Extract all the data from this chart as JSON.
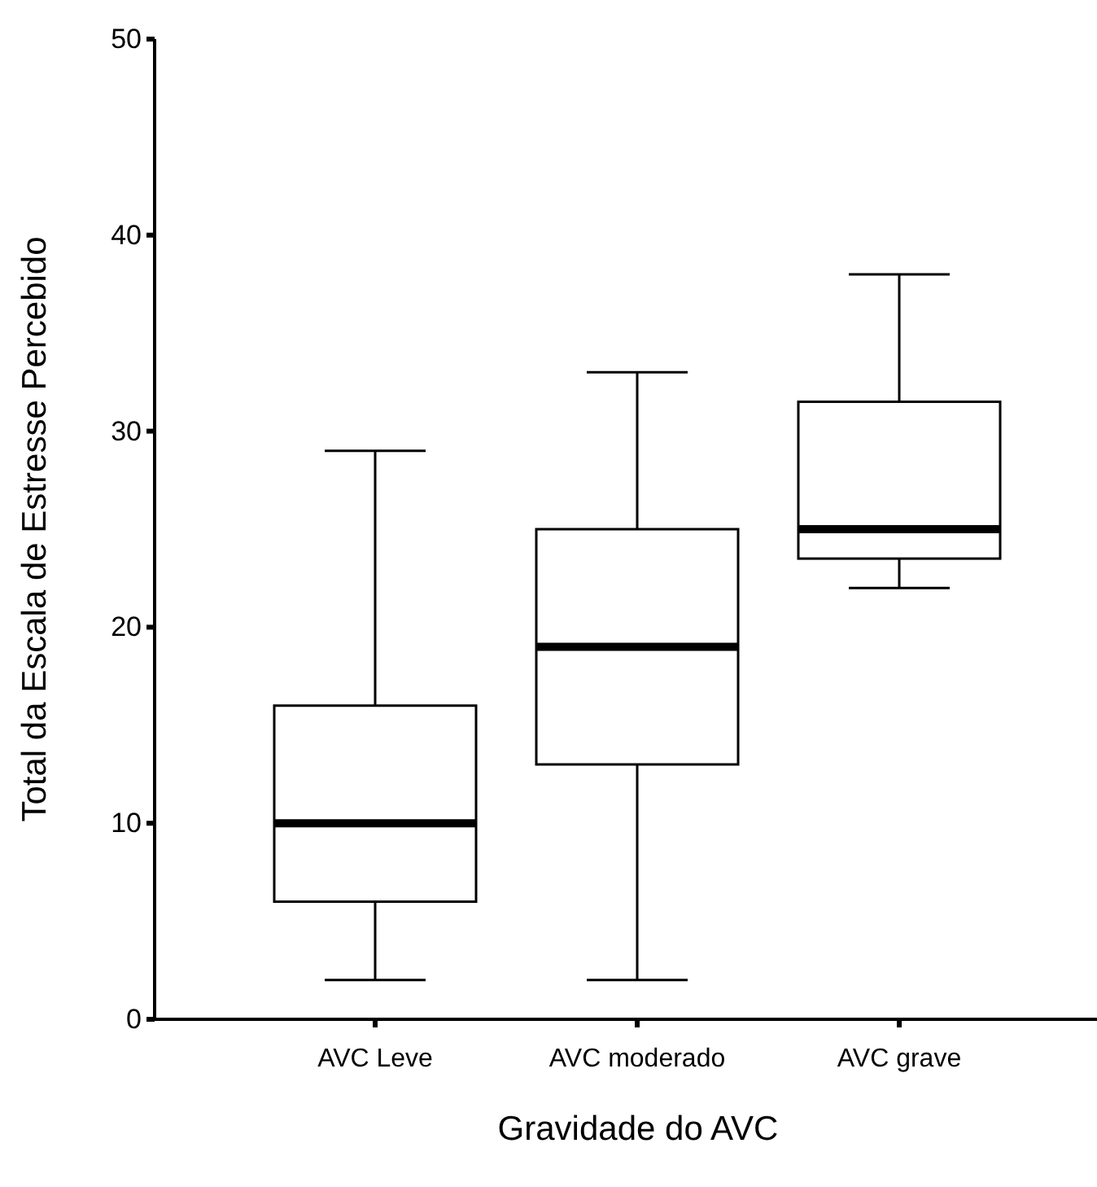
{
  "chart_data": {
    "type": "box",
    "xlabel": "Gravidade do AVC",
    "ylabel": "Total da Escala de Estresse Percebido",
    "categories": [
      "AVC Leve",
      "AVC moderado",
      "AVC grave"
    ],
    "ylim": [
      0,
      50
    ],
    "yticks": [
      0,
      10,
      20,
      30,
      40,
      50
    ],
    "grid": false,
    "boxes": [
      {
        "low": 2,
        "q1": 6,
        "median": 10,
        "q3": 16,
        "high": 29
      },
      {
        "low": 2,
        "q1": 13,
        "median": 19,
        "q3": 25,
        "high": 33
      },
      {
        "low": 22,
        "q1": 23.5,
        "median": 25,
        "q3": 31.5,
        "high": 38
      }
    ]
  }
}
